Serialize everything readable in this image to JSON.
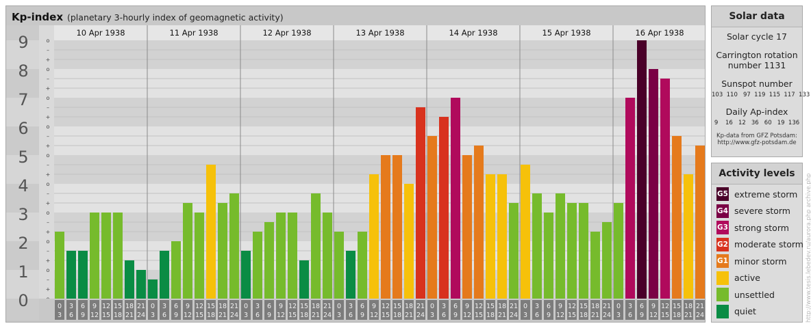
{
  "title": "Kp-index",
  "subtitle": "(planetary 3-hourly index of geomagnetic activity)",
  "chart_data": {
    "type": "bar",
    "y_ticks": [
      "0",
      "1",
      "2",
      "3",
      "4",
      "5",
      "6",
      "7",
      "8",
      "9"
    ],
    "ylim": [
      0,
      9
    ],
    "minor_ticks": [
      "o",
      "+",
      "–"
    ],
    "days": [
      "10 Apr 1938",
      "11 Apr 1938",
      "12 Apr 1938",
      "13 Apr 1938",
      "14 Apr 1938",
      "15 Apr 1938",
      "16 Apr 1938"
    ],
    "x_ticks_top": [
      "0",
      "3",
      "6",
      "9",
      "12",
      "15",
      "18",
      "21"
    ],
    "x_ticks_bottom": [
      "3",
      "6",
      "9",
      "12",
      "15",
      "18",
      "21",
      "24"
    ],
    "values": [
      [
        2.333,
        1.667,
        1.667,
        3.0,
        3.0,
        3.0,
        1.333,
        1.0
      ],
      [
        0.667,
        1.667,
        2.0,
        3.333,
        3.0,
        4.667,
        3.333,
        3.667
      ],
      [
        1.667,
        2.333,
        2.667,
        3.0,
        3.0,
        1.333,
        3.667,
        3.0
      ],
      [
        2.333,
        1.667,
        2.333,
        4.333,
        5.0,
        5.0,
        4.0,
        6.667
      ],
      [
        5.667,
        6.333,
        7.0,
        5.0,
        5.333,
        4.333,
        4.333,
        3.333
      ],
      [
        4.667,
        3.667,
        3.0,
        3.667,
        3.333,
        3.333,
        2.333,
        2.667
      ],
      [
        3.333,
        7.0,
        9.0,
        8.0,
        7.667,
        5.667,
        4.333,
        5.333
      ]
    ],
    "levels": [
      "quiet",
      "quiet",
      "unsettled",
      "unsettled",
      "active",
      "minor storm",
      "moderate storm",
      "strong storm",
      "severe storm",
      "extreme storm"
    ]
  },
  "solar": {
    "header": "Solar data",
    "cycle": "Solar cycle 17",
    "carrington_1": "Carrington rotation",
    "carrington_2": "number 1131",
    "sunspot_label": "Sunspot number",
    "sunspot_values": "103  110   97  119  115  117  133",
    "ap_label": "Daily Ap-index",
    "ap_values": "9    16   12   36   60   19  136",
    "credit_1": "Kp-data from  GFZ Potsdam:",
    "credit_2": "http://www.gfz-potsdam.de"
  },
  "activity": {
    "header": "Activity levels",
    "items": [
      {
        "badge": "G5",
        "label": "extreme storm",
        "color": "#4a0029"
      },
      {
        "badge": "G4",
        "label": "severe storm",
        "color": "#7a0045"
      },
      {
        "badge": "G3",
        "label": "strong storm",
        "color": "#b00a5c"
      },
      {
        "badge": "G2",
        "label": "moderate storm",
        "color": "#d8321e"
      },
      {
        "badge": "G1",
        "label": "minor storm",
        "color": "#e57a1c"
      },
      {
        "badge": "",
        "label": "active",
        "color": "#f6c10a"
      },
      {
        "badge": "",
        "label": "unsettled",
        "color": "#76bb2c"
      },
      {
        "badge": "",
        "label": "quiet",
        "color": "#0a8c44"
      }
    ]
  },
  "watermark": "http://www.tesis.lebedev.ru/aurora.php  archive.php"
}
